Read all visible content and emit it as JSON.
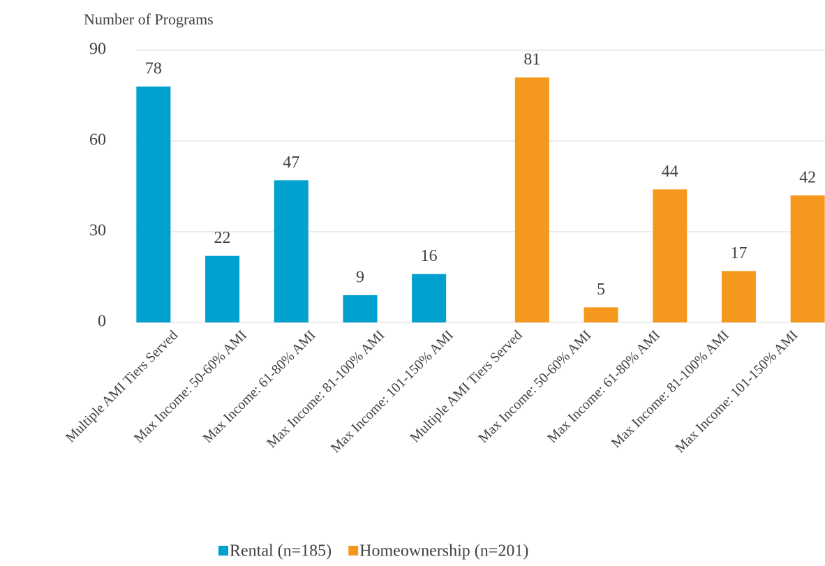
{
  "chart_data": {
    "type": "bar",
    "y_axis_label": "Number of Programs",
    "categories": [
      "Multiple AMI Tiers Served",
      "Max Income: 50-60% AMI",
      "Max Income: 61-80% AMI",
      "Max Income: 81-100% AMI",
      "Max Income: 101-150% AMI",
      "Multiple AMI Tiers Served",
      "Max Income: 50-60% AMI",
      "Max Income: 61-80% AMI",
      "Max Income: 81-100% AMI",
      "Max Income: 101-150% AMI"
    ],
    "series": [
      {
        "name": "Rental (n=185)",
        "color": "#00a0cf",
        "values": [
          78,
          22,
          47,
          9,
          16,
          null,
          null,
          null,
          null,
          null
        ]
      },
      {
        "name": "Homeownership (n=201)",
        "color": "#f7981e",
        "values": [
          null,
          null,
          null,
          null,
          null,
          81,
          5,
          44,
          17,
          42
        ]
      }
    ],
    "ylim": [
      0,
      90
    ],
    "yticks": [
      0,
      30,
      60,
      90
    ],
    "grid": true,
    "legend": "bottom"
  }
}
